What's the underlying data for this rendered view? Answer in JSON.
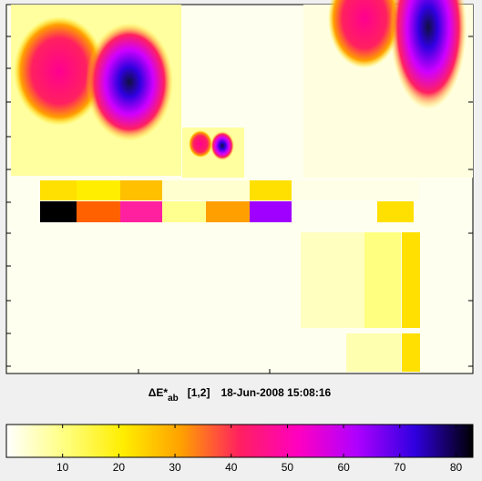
{
  "chart_data": {
    "type": "colorbar",
    "title": {
      "symbol": "ΔE*",
      "subscript": "ab",
      "indices": "[1,2]",
      "timestamp": "18-Jun-2008 15:08:16"
    },
    "xlim": [
      0,
      83
    ],
    "xticks": [
      10,
      20,
      30,
      40,
      50,
      60,
      70,
      80
    ],
    "colormap": [
      "#ffffff",
      "#ffff80",
      "#ffee00",
      "#ffa000",
      "#ff2060",
      "#ff00c0",
      "#b000ff",
      "#3000e0",
      "#000000"
    ]
  }
}
